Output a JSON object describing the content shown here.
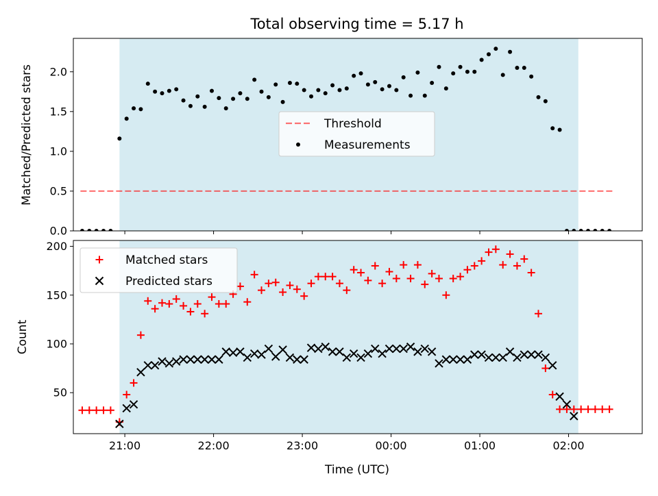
{
  "title": "Total observing time = 5.17 h",
  "colors": {
    "shade": "#add8e6",
    "threshold": "#ff0000",
    "measurement": "#000000",
    "matched": "#ff0000",
    "predicted": "#000000"
  },
  "chart_data": [
    {
      "type": "scatter",
      "ylabel": "Matched/Predicted stars",
      "xlim": [
        20.42,
        26.83
      ],
      "ylim": [
        0.0,
        2.42
      ],
      "yticks": [
        0.0,
        0.5,
        1.0,
        1.5,
        2.0
      ],
      "ytick_labels": [
        "0.0",
        "0.5",
        "1.0",
        "1.5",
        "2.0"
      ],
      "observing_window": [
        20.94,
        26.11
      ],
      "threshold": {
        "name": "Threshold",
        "value": 0.5,
        "x_range": [
          20.5,
          26.5
        ],
        "style": "dashed"
      },
      "legend_position": "center",
      "series": [
        {
          "name": "Measurements",
          "marker": "dot",
          "x": [
            20.52,
            20.6,
            20.68,
            20.76,
            20.84,
            20.94,
            21.02,
            21.1,
            21.18,
            21.26,
            21.34,
            21.42,
            21.5,
            21.58,
            21.66,
            21.74,
            21.82,
            21.9,
            21.98,
            22.06,
            22.14,
            22.22,
            22.3,
            22.38,
            22.46,
            22.54,
            22.62,
            22.7,
            22.78,
            22.86,
            22.94,
            23.02,
            23.1,
            23.18,
            23.26,
            23.34,
            23.42,
            23.5,
            23.58,
            23.66,
            23.74,
            23.82,
            23.9,
            23.98,
            24.06,
            24.14,
            24.22,
            24.3,
            24.38,
            24.46,
            24.54,
            24.62,
            24.7,
            24.78,
            24.86,
            24.94,
            25.02,
            25.1,
            25.18,
            25.26,
            25.34,
            25.42,
            25.5,
            25.58,
            25.66,
            25.74,
            25.82,
            25.9,
            25.98,
            26.06,
            26.14,
            26.22,
            26.3,
            26.38,
            26.46
          ],
          "y": [
            0.0,
            0.0,
            0.0,
            0.0,
            0.0,
            1.16,
            1.41,
            1.54,
            1.53,
            1.85,
            1.75,
            1.73,
            1.76,
            1.78,
            1.64,
            1.57,
            1.69,
            1.56,
            1.76,
            1.67,
            1.54,
            1.66,
            1.73,
            1.66,
            1.9,
            1.75,
            1.68,
            1.84,
            1.62,
            1.86,
            1.85,
            1.77,
            1.69,
            1.77,
            1.73,
            1.83,
            1.77,
            1.79,
            1.95,
            1.98,
            1.84,
            1.87,
            1.78,
            1.82,
            1.77,
            1.93,
            1.7,
            1.99,
            1.7,
            1.86,
            2.06,
            1.79,
            1.98,
            2.06,
            2.0,
            2.0,
            2.15,
            2.22,
            2.29,
            1.96,
            2.25,
            2.05,
            2.05,
            1.94,
            1.68,
            1.63,
            1.29,
            1.27,
            0.0,
            0.0,
            0.0,
            0.0,
            0.0,
            0.0,
            0.0
          ]
        }
      ]
    },
    {
      "type": "scatter",
      "ylabel": "Count",
      "xlabel": "Time (UTC)",
      "xlim": [
        20.42,
        26.83
      ],
      "ylim": [
        8,
        206
      ],
      "yticks": [
        50,
        100,
        150,
        200
      ],
      "ytick_labels": [
        "50",
        "100",
        "150",
        "200"
      ],
      "xticks": [
        21,
        22,
        23,
        24,
        25,
        26
      ],
      "xtick_labels": [
        "21:00",
        "22:00",
        "23:00",
        "00:00",
        "01:00",
        "02:00"
      ],
      "observing_window": [
        20.94,
        26.11
      ],
      "legend_position": "upper left",
      "series": [
        {
          "name": "Matched stars",
          "marker": "plus",
          "x": [
            20.52,
            20.6,
            20.68,
            20.76,
            20.84,
            20.94,
            21.02,
            21.1,
            21.18,
            21.26,
            21.34,
            21.42,
            21.5,
            21.58,
            21.66,
            21.74,
            21.82,
            21.9,
            21.98,
            22.06,
            22.14,
            22.22,
            22.3,
            22.38,
            22.46,
            22.54,
            22.62,
            22.7,
            22.78,
            22.86,
            22.94,
            23.02,
            23.1,
            23.18,
            23.26,
            23.34,
            23.42,
            23.5,
            23.58,
            23.66,
            23.74,
            23.82,
            23.9,
            23.98,
            24.06,
            24.14,
            24.22,
            24.3,
            24.38,
            24.46,
            24.54,
            24.62,
            24.7,
            24.78,
            24.86,
            24.94,
            25.02,
            25.1,
            25.18,
            25.26,
            25.34,
            25.42,
            25.5,
            25.58,
            25.66,
            25.74,
            25.82,
            25.9,
            25.98,
            26.06,
            26.14,
            26.22,
            26.3,
            26.38,
            26.46
          ],
          "y": [
            32,
            32,
            32,
            32,
            32,
            20,
            48,
            60,
            109,
            144,
            136,
            142,
            141,
            146,
            139,
            133,
            141,
            131,
            148,
            141,
            141,
            151,
            159,
            143,
            171,
            155,
            162,
            163,
            153,
            160,
            156,
            149,
            162,
            169,
            169,
            169,
            162,
            155,
            176,
            173,
            165,
            180,
            162,
            174,
            167,
            181,
            167,
            181,
            161,
            172,
            167,
            150,
            167,
            169,
            176,
            180,
            185,
            194,
            197,
            181,
            192,
            180,
            187,
            173,
            131,
            75,
            48,
            33,
            33,
            33,
            33,
            33,
            33,
            33,
            33
          ]
        },
        {
          "name": "Predicted stars",
          "marker": "x",
          "x": [
            20.94,
            21.02,
            21.1,
            21.18,
            21.26,
            21.34,
            21.42,
            21.5,
            21.58,
            21.66,
            21.74,
            21.82,
            21.9,
            21.98,
            22.06,
            22.14,
            22.22,
            22.3,
            22.38,
            22.46,
            22.54,
            22.62,
            22.7,
            22.78,
            22.86,
            22.94,
            23.02,
            23.1,
            23.18,
            23.26,
            23.34,
            23.42,
            23.5,
            23.58,
            23.66,
            23.74,
            23.82,
            23.9,
            23.98,
            24.06,
            24.14,
            24.22,
            24.3,
            24.38,
            24.46,
            24.54,
            24.62,
            24.7,
            24.78,
            24.86,
            24.94,
            25.02,
            25.1,
            25.18,
            25.26,
            25.34,
            25.42,
            25.5,
            25.58,
            25.66,
            25.74,
            25.82,
            25.9,
            25.98,
            26.06
          ],
          "y": [
            18,
            34,
            38,
            71,
            78,
            78,
            82,
            80,
            82,
            84,
            84,
            84,
            84,
            84,
            84,
            92,
            91,
            92,
            86,
            90,
            89,
            95,
            87,
            94,
            86,
            84,
            84,
            96,
            95,
            97,
            92,
            92,
            86,
            90,
            86,
            90,
            95,
            90,
            95,
            95,
            95,
            97,
            92,
            95,
            92,
            80,
            84,
            84,
            84,
            84,
            89,
            89,
            86,
            86,
            86,
            92,
            86,
            89,
            89,
            89,
            86,
            78,
            46,
            38,
            26
          ]
        }
      ]
    }
  ]
}
